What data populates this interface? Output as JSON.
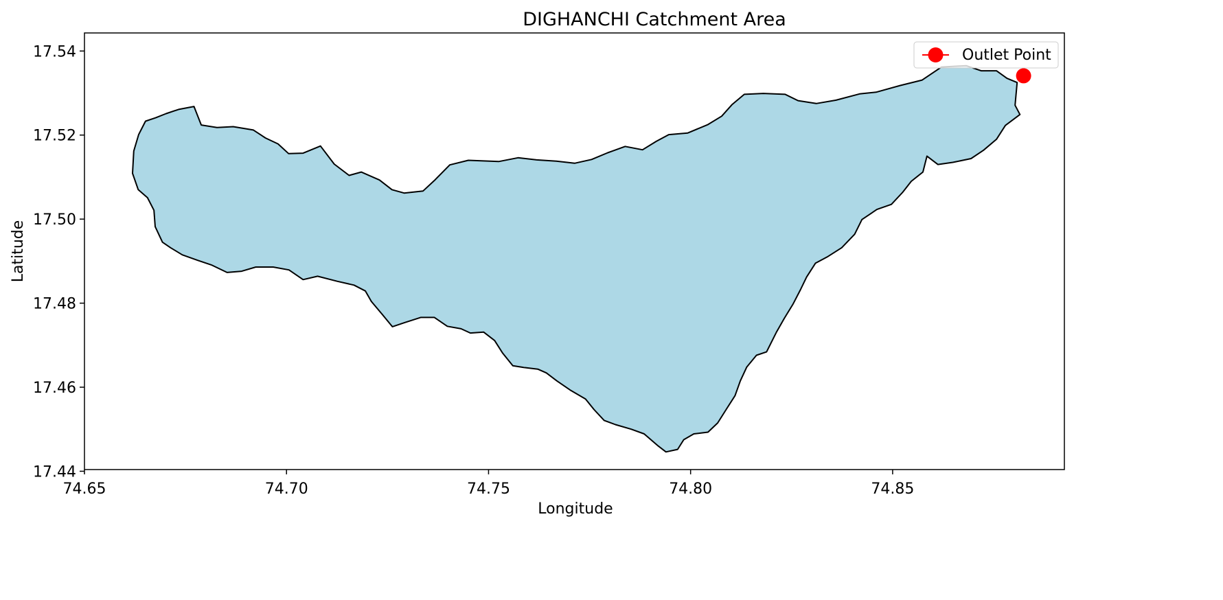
{
  "chart_data": {
    "type": "map",
    "title": "DIGHANCHI Catchment Area",
    "xlabel": "Longitude",
    "ylabel": "Latitude",
    "xlim": [
      74.65,
      74.8925
    ],
    "ylim": [
      17.4404,
      17.5443
    ],
    "x_ticks": [
      "74.65",
      "74.70",
      "74.75",
      "74.80",
      "74.85"
    ],
    "y_ticks": [
      "17.44",
      "17.46",
      "17.48",
      "17.50",
      "17.52",
      "17.54"
    ],
    "grid": false,
    "legend": {
      "placement": "top-right",
      "entries": [
        {
          "label": "Outlet Point",
          "marker": "circle",
          "color": "#ff0000"
        }
      ]
    },
    "catchment": {
      "fill_color": "#add8e6",
      "edge_color": "#000000",
      "boundary": [
        [
          74.6622,
          17.5162
        ],
        [
          74.6634,
          17.5201
        ],
        [
          74.6651,
          17.5233
        ],
        [
          74.6676,
          17.5241
        ],
        [
          74.6702,
          17.5251
        ],
        [
          74.6733,
          17.5261
        ],
        [
          74.6771,
          17.5268
        ],
        [
          74.6789,
          17.5224
        ],
        [
          74.6828,
          17.5218
        ],
        [
          74.6868,
          17.522
        ],
        [
          74.6918,
          17.5212
        ],
        [
          74.6948,
          17.5193
        ],
        [
          74.6979,
          17.5179
        ],
        [
          74.7005,
          17.5156
        ],
        [
          74.7041,
          17.5157
        ],
        [
          74.7084,
          17.5174
        ],
        [
          74.7118,
          17.5131
        ],
        [
          74.7155,
          17.5104
        ],
        [
          74.7185,
          17.5112
        ],
        [
          74.723,
          17.5093
        ],
        [
          74.7261,
          17.507
        ],
        [
          74.7291,
          17.5062
        ],
        [
          74.7338,
          17.5067
        ],
        [
          74.7366,
          17.5092
        ],
        [
          74.7404,
          17.5129
        ],
        [
          74.745,
          17.514
        ],
        [
          74.7525,
          17.5137
        ],
        [
          74.7573,
          17.5146
        ],
        [
          74.7619,
          17.5141
        ],
        [
          74.7668,
          17.5138
        ],
        [
          74.7713,
          17.5133
        ],
        [
          74.7755,
          17.5142
        ],
        [
          74.7795,
          17.5158
        ],
        [
          74.7838,
          17.5173
        ],
        [
          74.7881,
          17.5165
        ],
        [
          74.7915,
          17.5185
        ],
        [
          74.7946,
          17.5201
        ],
        [
          74.7993,
          17.5205
        ],
        [
          74.8043,
          17.5225
        ],
        [
          74.8077,
          17.5245
        ],
        [
          74.8103,
          17.5273
        ],
        [
          74.8133,
          17.5297
        ],
        [
          74.818,
          17.5299
        ],
        [
          74.8234,
          17.5297
        ],
        [
          74.8266,
          17.5282
        ],
        [
          74.8311,
          17.5275
        ],
        [
          74.836,
          17.5283
        ],
        [
          74.8418,
          17.5298
        ],
        [
          74.8459,
          17.5302
        ],
        [
          74.8519,
          17.5318
        ],
        [
          74.8573,
          17.5331
        ],
        [
          74.8621,
          17.5362
        ],
        [
          74.8682,
          17.5365
        ],
        [
          74.8719,
          17.5353
        ],
        [
          74.8757,
          17.5353
        ],
        [
          74.8783,
          17.5335
        ],
        [
          74.8808,
          17.5325
        ],
        [
          74.8803,
          17.5271
        ],
        [
          74.8815,
          17.5249
        ],
        [
          74.8779,
          17.5223
        ],
        [
          74.8757,
          17.519
        ],
        [
          74.8725,
          17.5164
        ],
        [
          74.8694,
          17.5144
        ],
        [
          74.8649,
          17.5135
        ],
        [
          74.8612,
          17.513
        ],
        [
          74.8585,
          17.515
        ],
        [
          74.8575,
          17.5112
        ],
        [
          74.8546,
          17.509
        ],
        [
          74.8525,
          17.5064
        ],
        [
          74.8497,
          17.5035
        ],
        [
          74.8461,
          17.5023
        ],
        [
          74.8424,
          17.4999
        ],
        [
          74.8406,
          17.4964
        ],
        [
          74.8374,
          17.4932
        ],
        [
          74.8338,
          17.491
        ],
        [
          74.8309,
          17.4895
        ],
        [
          74.8287,
          17.4862
        ],
        [
          74.8272,
          17.4832
        ],
        [
          74.8253,
          17.4797
        ],
        [
          74.8232,
          17.4764
        ],
        [
          74.8212,
          17.473
        ],
        [
          74.8188,
          17.4684
        ],
        [
          74.8163,
          17.4676
        ],
        [
          74.8139,
          17.4648
        ],
        [
          74.8123,
          17.4615
        ],
        [
          74.811,
          17.458
        ],
        [
          74.8088,
          17.4547
        ],
        [
          74.8067,
          17.4515
        ],
        [
          74.8043,
          17.4493
        ],
        [
          74.8008,
          17.4489
        ],
        [
          74.7983,
          17.4475
        ],
        [
          74.7968,
          17.4452
        ],
        [
          74.7939,
          17.4446
        ],
        [
          74.792,
          17.446
        ],
        [
          74.7885,
          17.4489
        ],
        [
          74.7853,
          17.45
        ],
        [
          74.7814,
          17.4511
        ],
        [
          74.7786,
          17.4521
        ],
        [
          74.7761,
          17.4547
        ],
        [
          74.774,
          17.4572
        ],
        [
          74.7704,
          17.4592
        ],
        [
          74.7669,
          17.4615
        ],
        [
          74.7643,
          17.4634
        ],
        [
          74.7622,
          17.4643
        ],
        [
          74.7587,
          17.4647
        ],
        [
          74.756,
          17.4651
        ],
        [
          74.7535,
          17.4681
        ],
        [
          74.7515,
          17.4711
        ],
        [
          74.7488,
          17.4731
        ],
        [
          74.7455,
          17.4729
        ],
        [
          74.7432,
          17.4739
        ],
        [
          74.7398,
          17.4745
        ],
        [
          74.7366,
          17.4766
        ],
        [
          74.7332,
          17.4766
        ],
        [
          74.7293,
          17.4754
        ],
        [
          74.7262,
          17.4744
        ],
        [
          74.7238,
          17.4772
        ],
        [
          74.721,
          17.4804
        ],
        [
          74.7195,
          17.4829
        ],
        [
          74.7167,
          17.4843
        ],
        [
          74.7126,
          17.4852
        ],
        [
          74.7077,
          17.4864
        ],
        [
          74.7041,
          17.4856
        ],
        [
          74.7006,
          17.4879
        ],
        [
          74.6967,
          17.4886
        ],
        [
          74.6924,
          17.4886
        ],
        [
          74.6889,
          17.4876
        ],
        [
          74.6853,
          17.4873
        ],
        [
          74.6814,
          17.4891
        ],
        [
          74.678,
          17.4902
        ],
        [
          74.6742,
          17.4915
        ],
        [
          74.6713,
          17.4932
        ],
        [
          74.6693,
          17.4945
        ],
        [
          74.6675,
          17.4982
        ],
        [
          74.6672,
          17.5021
        ],
        [
          74.6656,
          17.5051
        ],
        [
          74.6633,
          17.507
        ],
        [
          74.6619,
          17.5109
        ],
        [
          74.6622,
          17.5162
        ]
      ]
    },
    "outlet_point": {
      "label": "Outlet Point",
      "lon": 74.8824,
      "lat": 17.5341,
      "color": "#ff0000"
    }
  }
}
